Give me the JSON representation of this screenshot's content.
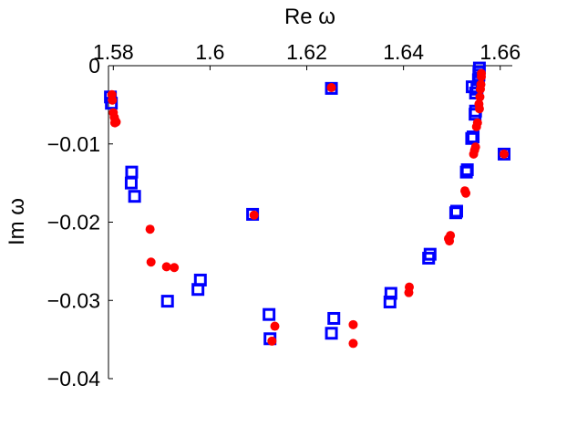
{
  "chart_data": {
    "type": "scatter",
    "xlabel": "Re ω",
    "ylabel": "Im ω",
    "xlim": [
      1.579,
      1.6625
    ],
    "ylim": [
      -0.04,
      0
    ],
    "x_ticks": [
      "1.58",
      "1.6",
      "1.62",
      "1.64",
      "1.66"
    ],
    "x_tick_values": [
      1.58,
      1.6,
      1.62,
      1.64,
      1.66
    ],
    "y_ticks": [
      "0",
      "−0.01",
      "−0.02",
      "−0.03",
      "−0.04"
    ],
    "y_tick_values": [
      0,
      -0.01,
      -0.02,
      -0.03,
      -0.04
    ],
    "x_axis_position": "top",
    "grid": false,
    "colors": {
      "squares": "#0000ff",
      "dots": "#ff0000"
    },
    "series": [
      {
        "marker": "square",
        "color": "#0000ff",
        "filled": false,
        "points": [
          [
            1.5794,
            -0.004
          ],
          [
            1.5796,
            -0.0048
          ],
          [
            1.5838,
            -0.0136
          ],
          [
            1.5837,
            -0.015
          ],
          [
            1.5844,
            -0.0167
          ],
          [
            1.5912,
            -0.0301
          ],
          [
            1.5975,
            -0.0286
          ],
          [
            1.598,
            -0.0274
          ],
          [
            1.6088,
            -0.019
          ],
          [
            1.6122,
            -0.0318
          ],
          [
            1.6124,
            -0.0349
          ],
          [
            1.6251,
            -0.0029
          ],
          [
            1.6251,
            -0.0342
          ],
          [
            1.6256,
            -0.0323
          ],
          [
            1.6372,
            -0.0302
          ],
          [
            1.6374,
            -0.0291
          ],
          [
            1.6452,
            -0.0246
          ],
          [
            1.6455,
            -0.0241
          ],
          [
            1.6508,
            -0.0188
          ],
          [
            1.651,
            -0.0186
          ],
          [
            1.653,
            -0.0136
          ],
          [
            1.6532,
            -0.0133
          ],
          [
            1.6541,
            -0.0093
          ],
          [
            1.6544,
            -0.0091
          ],
          [
            1.6548,
            -0.0062
          ],
          [
            1.6549,
            -0.0058
          ],
          [
            1.6542,
            -0.0027
          ],
          [
            1.6549,
            -0.0035
          ],
          [
            1.6552,
            -0.003
          ],
          [
            1.6555,
            -0.0018
          ],
          [
            1.6556,
            -0.0012
          ],
          [
            1.6556,
            -0.0008
          ],
          [
            1.6557,
            -0.0003
          ],
          [
            1.6608,
            -0.0113
          ]
        ]
      },
      {
        "marker": "circle",
        "color": "#ff0000",
        "filled": true,
        "points": [
          [
            1.5797,
            -0.0037
          ],
          [
            1.5798,
            -0.0044
          ],
          [
            1.58,
            -0.006
          ],
          [
            1.5802,
            -0.0066
          ],
          [
            1.5804,
            -0.007
          ],
          [
            1.5803,
            -0.0073
          ],
          [
            1.5806,
            -0.0072
          ],
          [
            1.5876,
            -0.0209
          ],
          [
            1.5878,
            -0.0251
          ],
          [
            1.591,
            -0.0257
          ],
          [
            1.5926,
            -0.0258
          ],
          [
            1.6091,
            -0.0191
          ],
          [
            1.6128,
            -0.0352
          ],
          [
            1.6134,
            -0.0333
          ],
          [
            1.6251,
            -0.0028
          ],
          [
            1.6296,
            -0.0331
          ],
          [
            1.6296,
            -0.0355
          ],
          [
            1.6412,
            -0.0283
          ],
          [
            1.6411,
            -0.029
          ],
          [
            1.6493,
            -0.0221
          ],
          [
            1.6495,
            -0.0224
          ],
          [
            1.6497,
            -0.0217
          ],
          [
            1.6527,
            -0.016
          ],
          [
            1.6529,
            -0.0163
          ],
          [
            1.6545,
            -0.0113
          ],
          [
            1.6547,
            -0.0108
          ],
          [
            1.6549,
            -0.0104
          ],
          [
            1.6551,
            -0.0078
          ],
          [
            1.6553,
            -0.0073
          ],
          [
            1.6556,
            -0.0049
          ],
          [
            1.6557,
            -0.0055
          ],
          [
            1.6558,
            -0.004
          ],
          [
            1.6559,
            -0.003
          ],
          [
            1.656,
            -0.0024
          ],
          [
            1.6561,
            -0.0014
          ],
          [
            1.6561,
            -0.001
          ],
          [
            1.6608,
            -0.0113
          ]
        ]
      }
    ]
  }
}
